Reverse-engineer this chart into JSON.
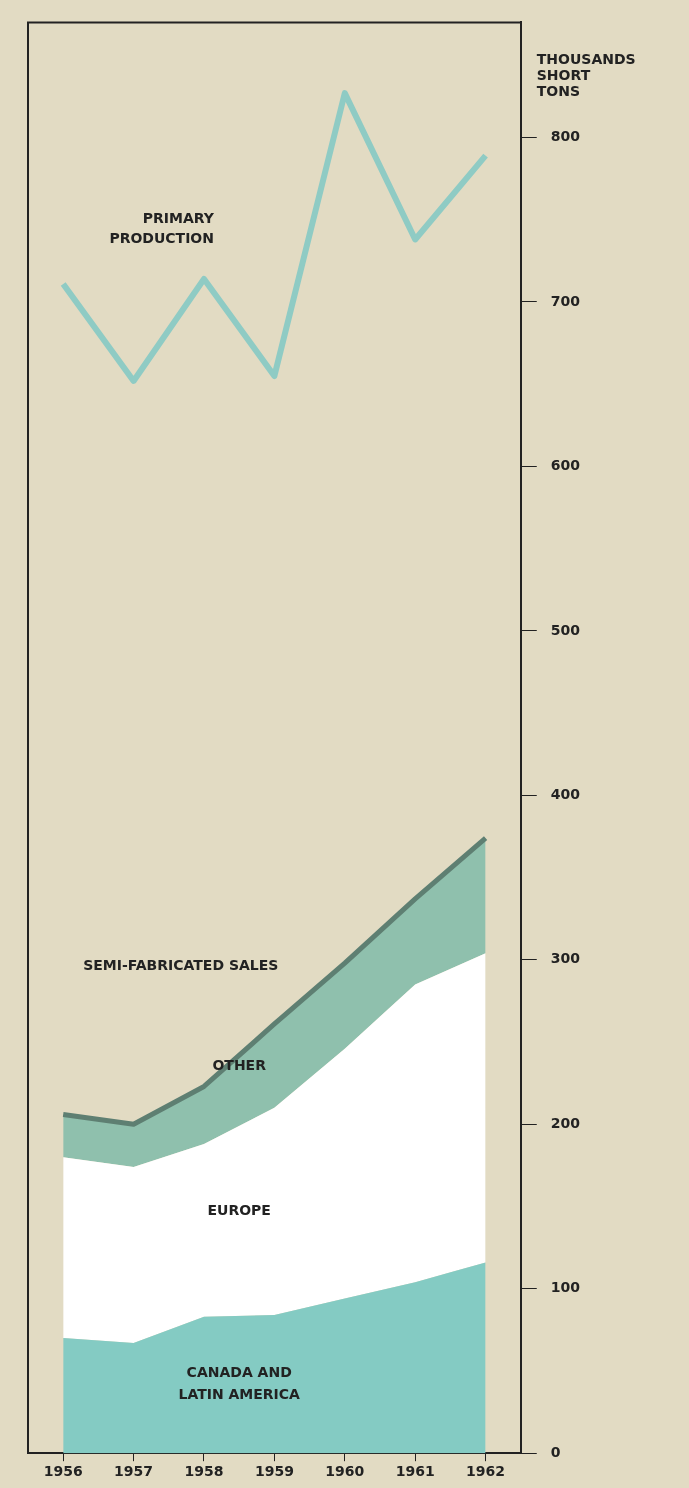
{
  "chart_data": {
    "type": "area",
    "ylabel": "THOUSANDS SHORT TONS",
    "categories": [
      "1956",
      "1957",
      "1958",
      "1959",
      "1960",
      "1961",
      "1962"
    ],
    "stacked": true,
    "ylim": [
      0,
      870
    ],
    "yticks": [
      0,
      100,
      200,
      300,
      400,
      500,
      600,
      700,
      800
    ],
    "grid": false,
    "legend": false,
    "annotations": [
      "SEMI-FABRICATED SALES"
    ],
    "series": [
      {
        "name": "CANADA AND LATIN AMERICA",
        "color": "#84cbc3",
        "values": [
          70,
          67,
          83,
          84,
          94,
          104,
          116
        ]
      },
      {
        "name": "EUROPE",
        "color": "#ffffff",
        "values": [
          110,
          107,
          105,
          126,
          152,
          181,
          188
        ]
      },
      {
        "name": "OTHER",
        "color": "#8fc0ad",
        "values": [
          26,
          26,
          35,
          51,
          52,
          52,
          70
        ]
      },
      {
        "name": "PRIMARY PRODUCTION",
        "type": "line",
        "color": "#8fcbc4",
        "values": [
          711,
          652,
          714,
          655,
          827,
          738,
          789
        ]
      }
    ]
  }
}
